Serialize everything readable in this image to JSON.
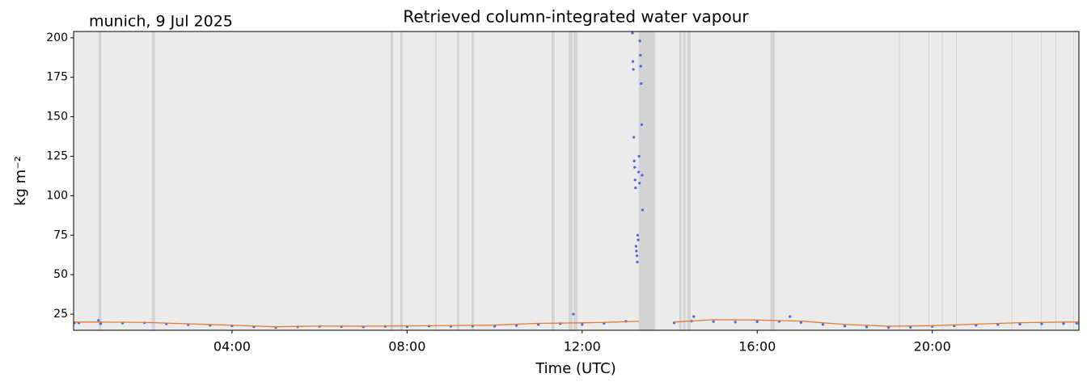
{
  "chart_data": {
    "type": "scatter",
    "title": "Retrieved column-integrated water vapour",
    "annotation": "munich, 9 Jul 2025",
    "x_label": "Time (UTC)",
    "y_label": "kg m⁻²",
    "xlim": [
      0.38,
      23.35
    ],
    "ylim": [
      14.8,
      204
    ],
    "xticks": [
      {
        "value": 4,
        "label": "04:00"
      },
      {
        "value": 8,
        "label": "08:00"
      },
      {
        "value": 12,
        "label": "12:00"
      },
      {
        "value": 16,
        "label": "16:00"
      },
      {
        "value": 20,
        "label": "20:00"
      }
    ],
    "yticks": [
      25,
      50,
      75,
      100,
      125,
      150,
      175,
      200
    ],
    "background": "#ebebeb",
    "span_color": "#d3d3d3",
    "spans": [
      [
        0.95,
        1.01
      ],
      [
        2.17,
        2.24
      ],
      [
        7.62,
        7.68
      ],
      [
        7.84,
        7.9
      ],
      [
        8.64,
        8.67
      ],
      [
        9.14,
        9.19
      ],
      [
        9.47,
        9.52
      ],
      [
        11.3,
        11.37
      ],
      [
        11.69,
        11.78
      ],
      [
        11.81,
        11.89
      ],
      [
        13.29,
        13.66
      ],
      [
        14.22,
        14.27
      ],
      [
        14.31,
        14.36
      ],
      [
        14.4,
        14.48
      ],
      [
        16.3,
        16.4
      ],
      [
        19.24,
        19.26
      ],
      [
        19.91,
        19.93
      ],
      [
        20.22,
        20.24
      ],
      [
        20.54,
        20.56
      ],
      [
        21.81,
        21.83
      ],
      [
        22.48,
        22.5
      ],
      [
        22.81,
        22.83
      ],
      [
        23.22,
        23.24
      ]
    ],
    "series": [
      {
        "type": "scatter",
        "color": "#4169e1",
        "x": [
          0.4,
          0.5,
          0.95,
          1.0,
          1.5,
          2.0,
          2.5,
          3.0,
          3.5,
          4.0,
          4.5,
          5.0,
          5.5,
          6.0,
          6.5,
          7.0,
          7.5,
          8.0,
          8.5,
          9.0,
          9.5,
          10.0,
          10.5,
          11.0,
          11.5,
          11.8,
          12.0,
          12.5,
          13.0,
          13.15,
          13.16,
          13.17,
          13.18,
          13.19,
          13.2,
          13.21,
          13.22,
          13.23,
          13.24,
          13.25,
          13.26,
          13.27,
          13.28,
          13.29,
          13.3,
          13.31,
          13.32,
          13.33,
          13.34,
          13.35,
          13.36,
          13.37,
          13.38,
          14.1,
          14.5,
          14.55,
          15.0,
          15.5,
          16.0,
          16.5,
          16.75,
          17.0,
          17.5,
          18.0,
          18.5,
          19.0,
          19.5,
          20.0,
          20.5,
          21.0,
          21.5,
          22.0,
          22.5,
          23.0,
          23.3
        ],
        "values": [
          19.5,
          19.5,
          21,
          19,
          19.3,
          19.5,
          18.8,
          18.3,
          18,
          17.6,
          17,
          16.5,
          16.9,
          17.2,
          17.1,
          16.9,
          17.2,
          17,
          17.5,
          17.3,
          17.5,
          17.3,
          17.8,
          18.4,
          19,
          25,
          18.4,
          19.2,
          20.5,
          203,
          185,
          180,
          137,
          122,
          118,
          110,
          105,
          68,
          65,
          62,
          58,
          75,
          72,
          115,
          125,
          108,
          198,
          189,
          182,
          171,
          145,
          113,
          91,
          19.5,
          20.6,
          23.5,
          20.3,
          20,
          20.2,
          20.4,
          23.5,
          19.7,
          18.5,
          17.5,
          16.9,
          16.5,
          16.7,
          17.2,
          17.6,
          18,
          18.4,
          18.7,
          18.9,
          19,
          19.2
        ]
      },
      {
        "type": "line",
        "color": "#e07b39",
        "x": [
          0.4,
          1,
          2,
          3,
          4,
          5,
          6,
          7,
          8,
          9,
          10,
          11,
          12,
          12.5,
          13.3,
          13.7,
          14.1,
          15,
          16,
          17,
          18,
          19,
          20,
          21,
          22,
          23,
          23.35
        ],
        "values": [
          20,
          20,
          19.8,
          18.9,
          18,
          17,
          17.5,
          17.4,
          17.6,
          17.8,
          18.1,
          19.2,
          19.5,
          19.8,
          20.5,
          null,
          20,
          21.5,
          21.3,
          20.6,
          18.5,
          17.4,
          17.7,
          18.7,
          19.6,
          20,
          20
        ]
      }
    ]
  }
}
